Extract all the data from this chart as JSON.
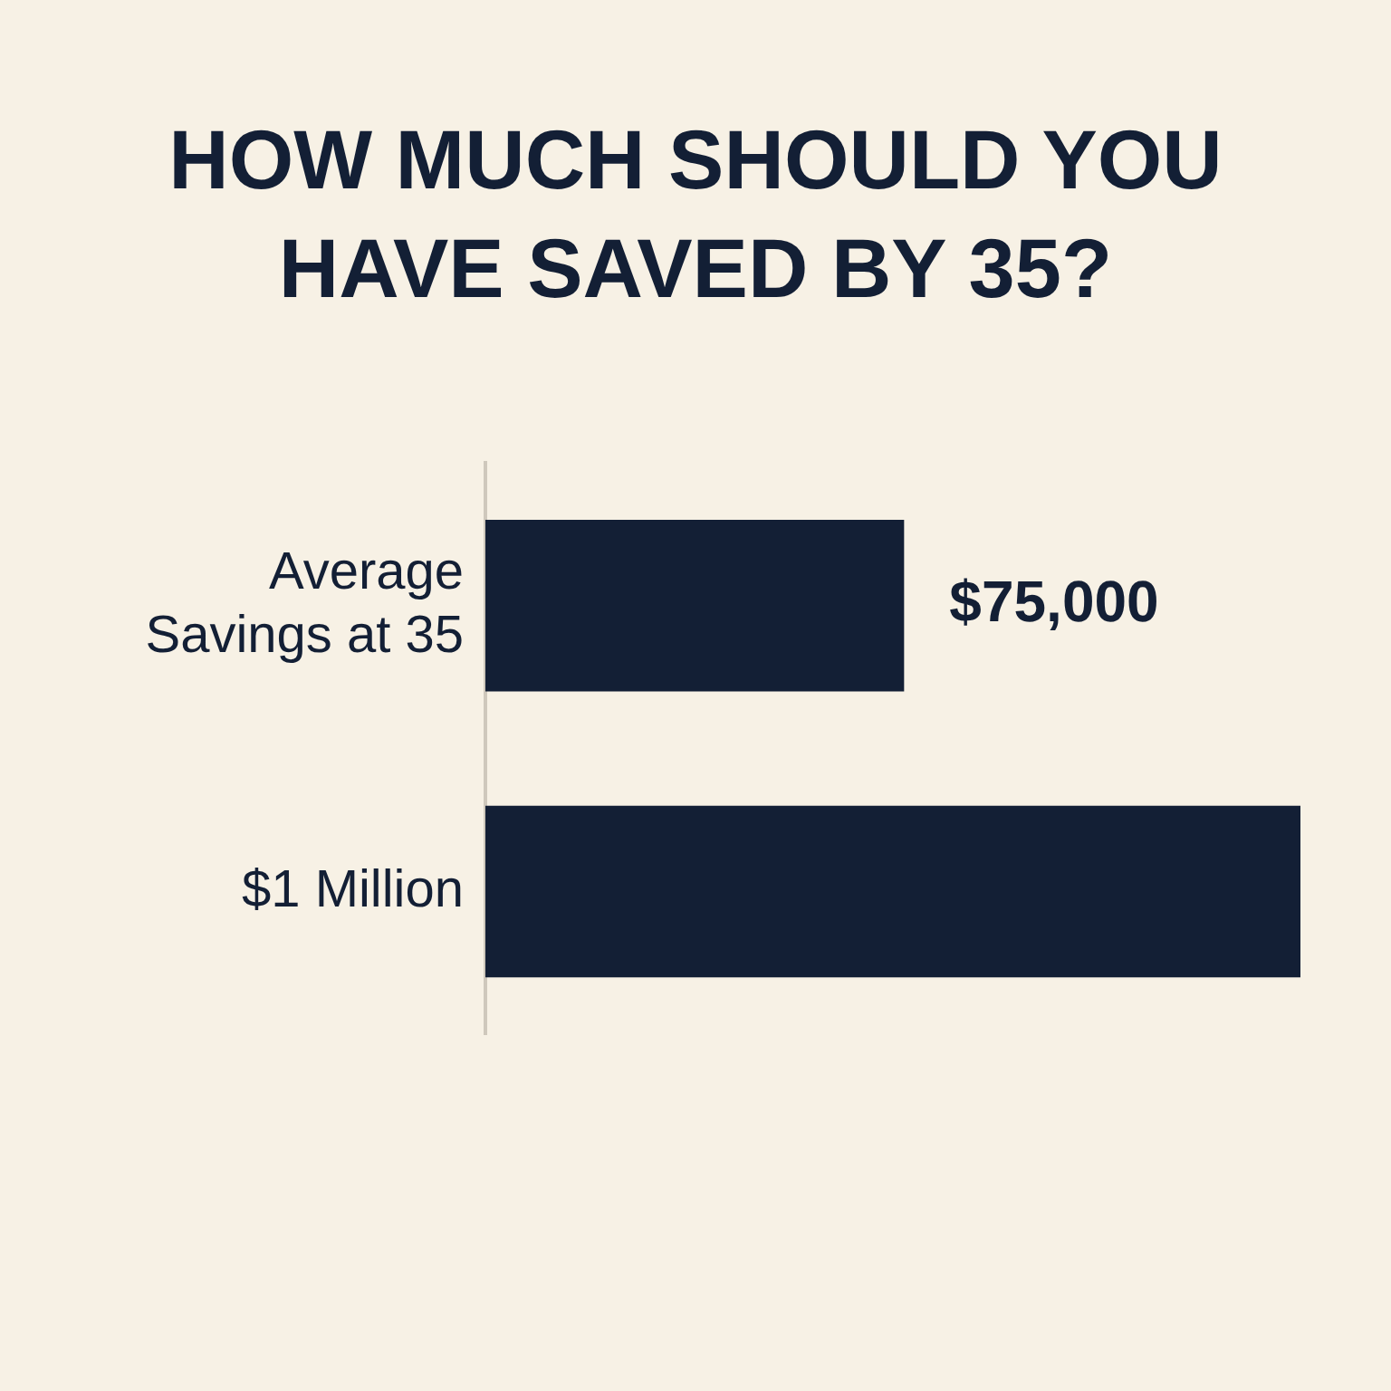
{
  "chart_data": {
    "type": "bar",
    "title": "HOW MUCH SHOULD YOU HAVE SAVED BY 35?",
    "orientation": "horizontal",
    "tick_labels": "y",
    "categories": [
      "Average Savings at 35",
      "$1 Million"
    ],
    "values": [
      75000,
      146000
    ],
    "value_labels": [
      "$75,000",
      null
    ],
    "color": "#131f35"
  }
}
